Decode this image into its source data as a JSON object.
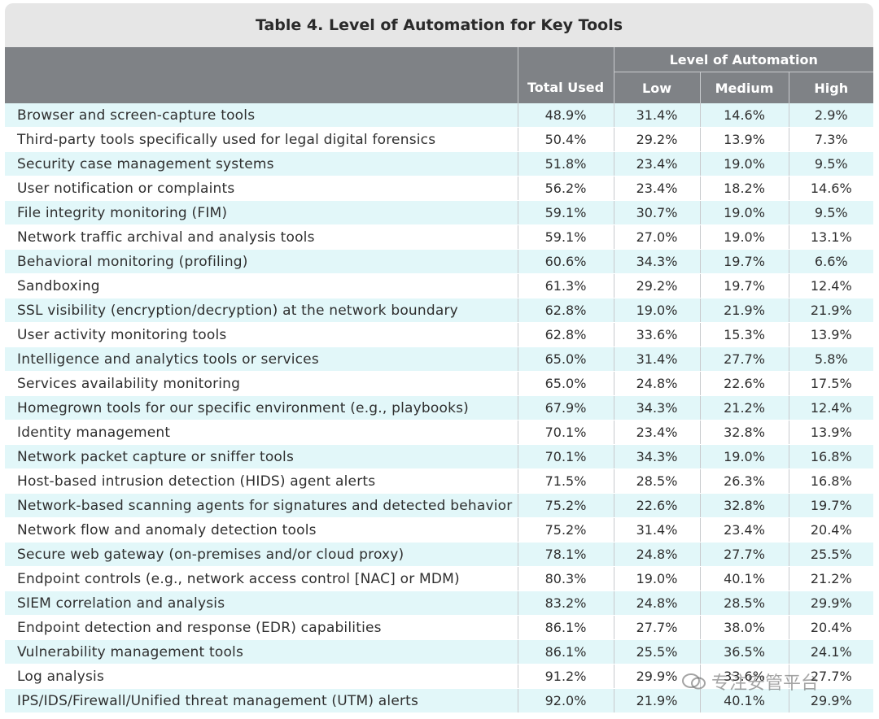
{
  "title": "Table 4. Level of Automation for Key Tools",
  "header": {
    "group_label": "Level of Automation",
    "total_used": "Total Used",
    "low": "Low",
    "medium": "Medium",
    "high": "High"
  },
  "rows": [
    {
      "tool": "Browser and screen-capture tools",
      "total": "48.9%",
      "low": "31.4%",
      "medium": "14.6%",
      "high": "2.9%"
    },
    {
      "tool": "Third-party tools specifically used for legal digital forensics",
      "total": "50.4%",
      "low": "29.2%",
      "medium": "13.9%",
      "high": "7.3%"
    },
    {
      "tool": "Security case management systems",
      "total": "51.8%",
      "low": "23.4%",
      "medium": "19.0%",
      "high": "9.5%"
    },
    {
      "tool": "User notification or complaints",
      "total": "56.2%",
      "low": "23.4%",
      "medium": "18.2%",
      "high": "14.6%"
    },
    {
      "tool": "File integrity monitoring (FIM)",
      "total": "59.1%",
      "low": "30.7%",
      "medium": "19.0%",
      "high": "9.5%"
    },
    {
      "tool": "Network traffic archival and analysis tools",
      "total": "59.1%",
      "low": "27.0%",
      "medium": "19.0%",
      "high": "13.1%"
    },
    {
      "tool": "Behavioral monitoring (profiling)",
      "total": "60.6%",
      "low": "34.3%",
      "medium": "19.7%",
      "high": "6.6%"
    },
    {
      "tool": "Sandboxing",
      "total": "61.3%",
      "low": "29.2%",
      "medium": "19.7%",
      "high": "12.4%"
    },
    {
      "tool": "SSL visibility (encryption/decryption) at the network boundary",
      "total": "62.8%",
      "low": "19.0%",
      "medium": "21.9%",
      "high": "21.9%"
    },
    {
      "tool": "User activity monitoring tools",
      "total": "62.8%",
      "low": "33.6%",
      "medium": "15.3%",
      "high": "13.9%"
    },
    {
      "tool": "Intelligence and analytics tools or services",
      "total": "65.0%",
      "low": "31.4%",
      "medium": "27.7%",
      "high": "5.8%"
    },
    {
      "tool": "Services availability monitoring",
      "total": "65.0%",
      "low": "24.8%",
      "medium": "22.6%",
      "high": "17.5%"
    },
    {
      "tool": "Homegrown tools for our specific environment (e.g., playbooks)",
      "total": "67.9%",
      "low": "34.3%",
      "medium": "21.2%",
      "high": "12.4%"
    },
    {
      "tool": "Identity management",
      "total": "70.1%",
      "low": "23.4%",
      "medium": "32.8%",
      "high": "13.9%"
    },
    {
      "tool": "Network packet capture or sniffer tools",
      "total": "70.1%",
      "low": "34.3%",
      "medium": "19.0%",
      "high": "16.8%"
    },
    {
      "tool": "Host-based intrusion detection (HIDS) agent alerts",
      "total": "71.5%",
      "low": "28.5%",
      "medium": "26.3%",
      "high": "16.8%"
    },
    {
      "tool": "Network-based scanning agents for signatures and detected behavior",
      "total": "75.2%",
      "low": "22.6%",
      "medium": "32.8%",
      "high": "19.7%"
    },
    {
      "tool": "Network flow and anomaly detection tools",
      "total": "75.2%",
      "low": "31.4%",
      "medium": "23.4%",
      "high": "20.4%"
    },
    {
      "tool": "Secure web gateway (on-premises and/or cloud proxy)",
      "total": "78.1%",
      "low": "24.8%",
      "medium": "27.7%",
      "high": "25.5%"
    },
    {
      "tool": "Endpoint controls (e.g., network access control [NAC] or MDM)",
      "total": "80.3%",
      "low": "19.0%",
      "medium": "40.1%",
      "high": "21.2%"
    },
    {
      "tool": "SIEM correlation and analysis",
      "total": "83.2%",
      "low": "24.8%",
      "medium": "28.5%",
      "high": "29.9%"
    },
    {
      "tool": "Endpoint detection and response (EDR) capabilities",
      "total": "86.1%",
      "low": "27.7%",
      "medium": "38.0%",
      "high": "20.4%"
    },
    {
      "tool": "Vulnerability management tools",
      "total": "86.1%",
      "low": "25.5%",
      "medium": "36.5%",
      "high": "24.1%"
    },
    {
      "tool": "Log analysis",
      "total": "91.2%",
      "low": "29.9%",
      "medium": "33.6%",
      "high": "27.7%"
    },
    {
      "tool": "IPS/IDS/Firewall/Unified threat management (UTM) alerts",
      "total": "92.0%",
      "low": "21.9%",
      "medium": "40.1%",
      "high": "29.9%"
    }
  ],
  "watermark": "专注安管平台",
  "colors": {
    "header_bg": "#7f8286",
    "title_bg": "#e6e6e6",
    "row_tint": "#e2f7f9"
  }
}
